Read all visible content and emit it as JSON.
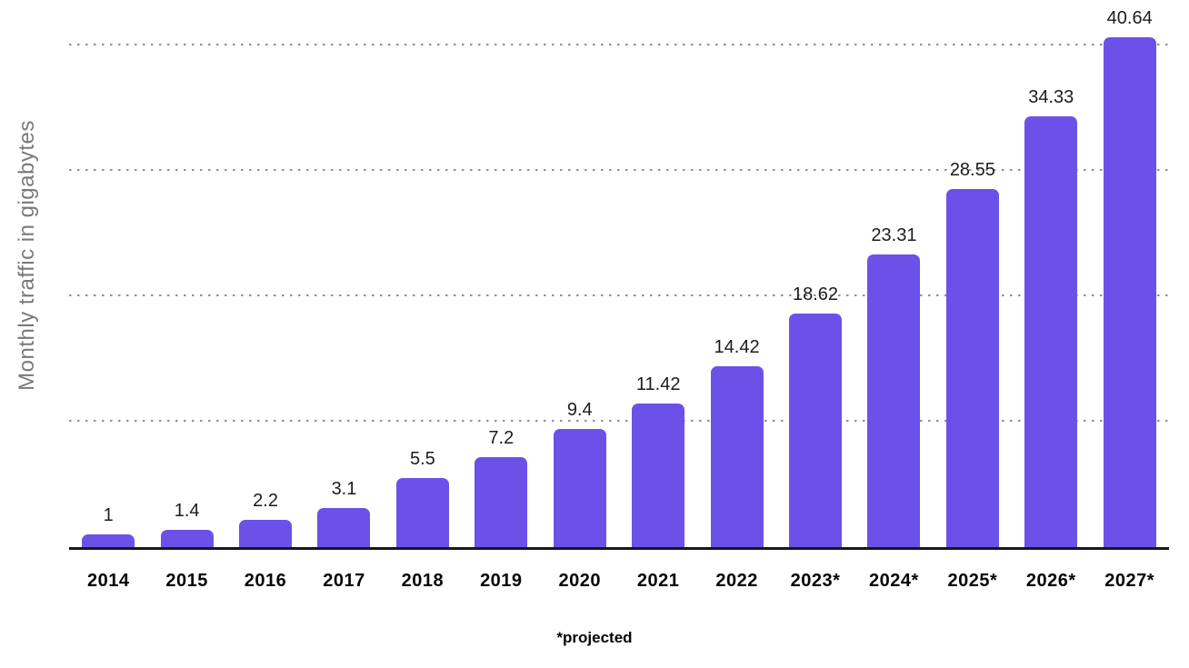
{
  "chart_data": {
    "type": "bar",
    "title": "",
    "ylabel": "Monthly traffic in gigabytes",
    "xlabel": "",
    "footnote": "*projected",
    "unit": "gigabytes",
    "categories": [
      "2014",
      "2015",
      "2016",
      "2017",
      "2018",
      "2019",
      "2020",
      "2021",
      "2022",
      "2023*",
      "2024*",
      "2025*",
      "2026*",
      "2027*"
    ],
    "values": [
      1,
      1.4,
      2.2,
      3.1,
      5.5,
      7.2,
      9.4,
      11.42,
      14.42,
      18.62,
      23.31,
      28.55,
      34.33,
      40.64
    ],
    "value_labels": [
      "1",
      "1.4",
      "2.2",
      "3.1",
      "5.5",
      "7.2",
      "9.4",
      "11.42",
      "14.42",
      "18.62",
      "23.31",
      "28.55",
      "34.33",
      "40.64"
    ],
    "projected_categories": [
      "2023*",
      "2024*",
      "2025*",
      "2026*",
      "2027*"
    ],
    "ylim": [
      0,
      43.6
    ],
    "gridline_values": [
      10,
      20,
      30,
      40
    ],
    "grid_style": "dotted",
    "legend_position": "none",
    "colors": {
      "bar": "#6C51E9",
      "grid_dot": "#919191",
      "axis_line": "#17171F",
      "value_label": "#1C1C1C",
      "category_label": "#050505",
      "ylabel_text": "#7A7A7A",
      "background": "#FFFFFF"
    }
  }
}
